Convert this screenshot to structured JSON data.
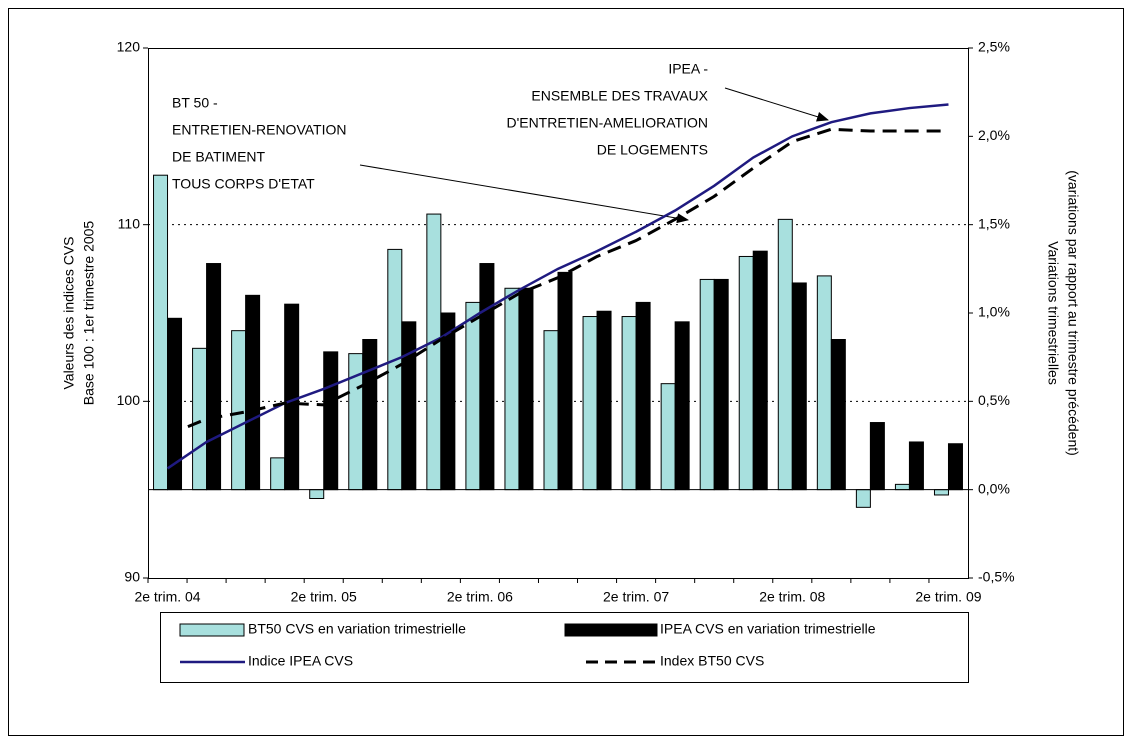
{
  "chart_data": {
    "type": "bar",
    "categories": [
      "2e trim. 04",
      null,
      null,
      null,
      "2e trim. 05",
      null,
      null,
      null,
      "2e trim. 06",
      null,
      null,
      null,
      "2e trim. 07",
      null,
      null,
      null,
      "2e trim. 08",
      null,
      null,
      null,
      "2e trim. 09"
    ],
    "ylabel": [
      "Valeurs des indices CVS",
      "Base 100 : 1er trimestre 2005"
    ],
    "y2label": [
      "Variations trimestrielles",
      "(variations par rapport au trimestre précédent)"
    ],
    "ylim": [
      90,
      120
    ],
    "yticks": [
      90,
      100,
      110,
      120
    ],
    "y2lim": [
      -0.5,
      2.5
    ],
    "y2ticks": [
      {
        "value": -0.5,
        "label": "-0,5%"
      },
      {
        "value": 0,
        "label": "0,0%"
      },
      {
        "value": 0.5,
        "label": "0,5%"
      },
      {
        "value": 1,
        "label": "1,0%"
      },
      {
        "value": 1.5,
        "label": "1,5%"
      },
      {
        "value": 2,
        "label": "2,0%"
      },
      {
        "value": 2.5,
        "label": "2,5%"
      }
    ],
    "grid": true,
    "legend": "bottom",
    "series": [
      {
        "name": "BT50 CVS en variation trimestrielle",
        "type": "bar",
        "axis": "y2",
        "color": "#a8e0de",
        "values": [
          1.78,
          0.8,
          0.9,
          0.18,
          -0.05,
          0.77,
          1.36,
          1.56,
          1.06,
          1.14,
          0.9,
          0.98,
          0.98,
          0.6,
          1.19,
          1.32,
          1.53,
          1.21,
          -0.1,
          0.03,
          -0.03
        ]
      },
      {
        "name": "IPEA CVS en variation trimestrielle",
        "type": "bar",
        "axis": "y2",
        "color": "#000000",
        "values": [
          0.97,
          1.28,
          1.1,
          1.05,
          0.78,
          0.85,
          0.95,
          1.0,
          1.28,
          1.14,
          1.23,
          1.01,
          1.06,
          0.95,
          1.19,
          1.35,
          1.17,
          0.85,
          0.38,
          0.27,
          0.26
        ]
      },
      {
        "name": "Indice IPEA CVS",
        "type": "line",
        "color": "#1f1a80",
        "dash": false,
        "values": [
          96.2,
          97.7,
          98.8,
          99.9,
          100.7,
          101.6,
          102.5,
          103.6,
          105,
          106.3,
          107.5,
          108.5,
          109.6,
          110.8,
          112.2,
          113.8,
          115,
          115.8,
          116.3,
          116.6,
          116.8
        ]
      },
      {
        "name": "Index BT50 CVS",
        "type": "line",
        "color": "#000000",
        "dash": true,
        "values": [
          98.1,
          99,
          99.4,
          99.9,
          99.8,
          100.9,
          102.1,
          103.5,
          104.8,
          106.1,
          107,
          108.2,
          109.1,
          110.3,
          111.6,
          113.2,
          114.7,
          115.4,
          115.3,
          115.3,
          115.3
        ]
      }
    ],
    "annotations": [
      {
        "lines": [
          "IPEA -",
          "ENSEMBLE DES TRAVAUX",
          "D'ENTRETIEN-AMELIORATION",
          "DE LOGEMENTS"
        ]
      },
      {
        "lines": [
          "BT 50 -",
          "ENTRETIEN-RENOVATION",
          "DE BATIMENT",
          "TOUS CORPS D'ETAT"
        ]
      }
    ]
  }
}
